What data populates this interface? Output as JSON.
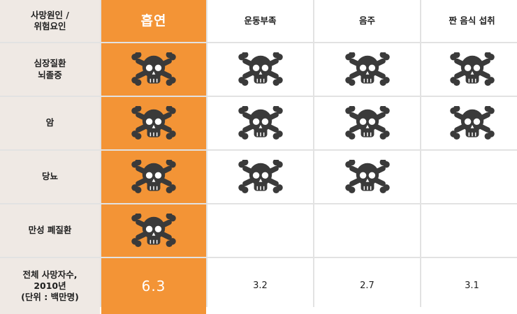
{
  "header": {
    "corner": "사망원인 /\n위험요인",
    "columns": [
      "흡연",
      "운동부족",
      "음주",
      "짠 음식 섭취"
    ]
  },
  "rows": [
    {
      "label": "심장질환\n뇌졸중",
      "skulls": [
        true,
        true,
        true,
        true
      ]
    },
    {
      "label": "암",
      "skulls": [
        true,
        true,
        true,
        true
      ]
    },
    {
      "label": "당뇨",
      "skulls": [
        true,
        true,
        true,
        false
      ]
    },
    {
      "label": "만성 폐질환",
      "skulls": [
        true,
        false,
        false,
        false
      ]
    }
  ],
  "totals": {
    "label": "전체 사망자수,\n2010년\n(단위 : 백만명)",
    "values": [
      "6.3",
      "3.2",
      "2.7",
      "3.1"
    ]
  },
  "icon": "skull-crossbones-icon",
  "colors": {
    "highlight": "#f39436",
    "row_header_bg": "#efe9e4",
    "skull": "#3a3a3a"
  }
}
